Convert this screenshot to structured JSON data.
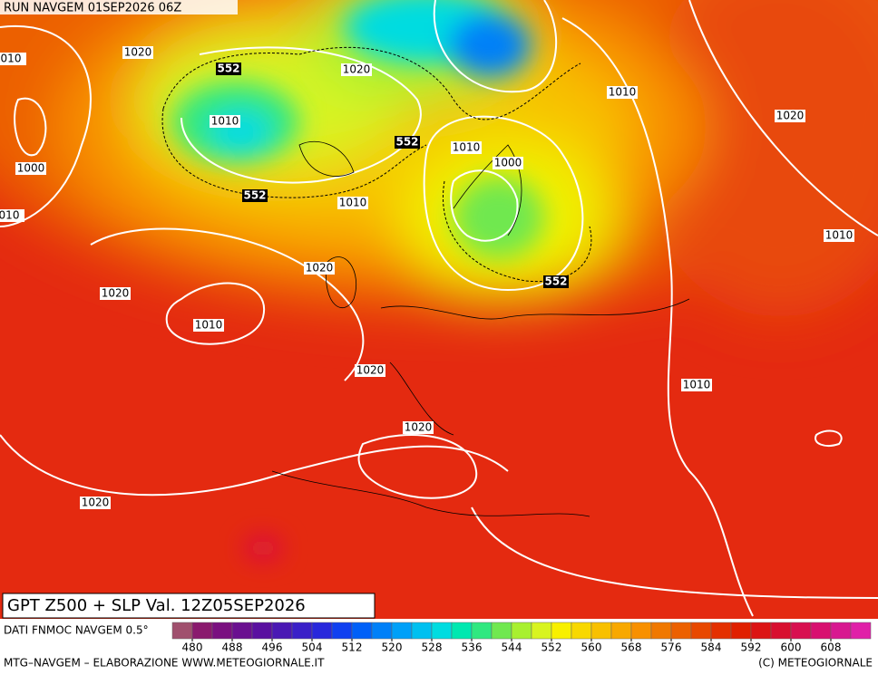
{
  "header": {
    "run": "RUN NAVGEM 01SEP2026 06Z"
  },
  "title": "GPT Z500 + SLP Val. 12Z05SEP2026",
  "isobar_labels": [
    "1020",
    "1020",
    "1010",
    "1020",
    "1010",
    "1000",
    "1010",
    "1000",
    "1010",
    "1010",
    "1020",
    "1020",
    "1010",
    "1020",
    "1010",
    "1020",
    "1020",
    "010",
    "010"
  ],
  "z500_labels": [
    "552",
    "552",
    "552",
    "552"
  ],
  "legend": {
    "source": "DATI FNMOC NAVGEM 0.5°",
    "colors": [
      "#a0506e",
      "#8a1a6e",
      "#7a1080",
      "#6a1090",
      "#5a10a0",
      "#4a18b4",
      "#3a20c8",
      "#2828dc",
      "#1040f0",
      "#0060f8",
      "#0080f8",
      "#00a0f8",
      "#00c0f0",
      "#00dce0",
      "#00e8b0",
      "#30e880",
      "#70e850",
      "#a8f030",
      "#d8f420",
      "#f8f000",
      "#f8d800",
      "#f8c000",
      "#f8a800",
      "#f89000",
      "#f07800",
      "#ec6000",
      "#e84800",
      "#e43000",
      "#e02000",
      "#dc1414",
      "#d81030",
      "#d81050",
      "#d81070",
      "#d81890",
      "#e020a8"
    ],
    "ticks": [
      480,
      488,
      496,
      504,
      512,
      520,
      528,
      536,
      544,
      552,
      560,
      568,
      576,
      584,
      592,
      600,
      608
    ]
  },
  "footer": {
    "left": "MTG–NAVGEM – ELABORAZIONE WWW.METEOGIORNALE.IT",
    "right": "(C) METEOGIORNALE"
  }
}
